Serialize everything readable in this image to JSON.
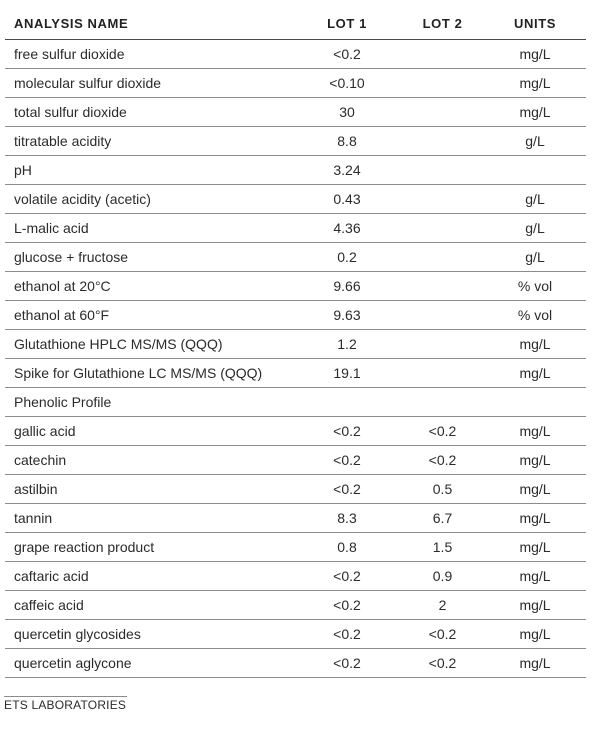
{
  "table": {
    "headers": {
      "name": "ANALYSIS NAME",
      "lot1": "LOT 1",
      "lot2": "LOT 2",
      "units": "UNITS"
    },
    "rows": [
      {
        "name": "free sulfur dioxide",
        "lot1": "<0.2",
        "lot2": "",
        "units": "mg/L"
      },
      {
        "name": "molecular sulfur dioxide",
        "lot1": "<0.10",
        "lot2": "",
        "units": "mg/L"
      },
      {
        "name": "total sulfur dioxide",
        "lot1": "30",
        "lot2": "",
        "units": "mg/L"
      },
      {
        "name": "titratable acidity",
        "lot1": "8.8",
        "lot2": "",
        "units": "g/L"
      },
      {
        "name": "pH",
        "lot1": "3.24",
        "lot2": "",
        "units": ""
      },
      {
        "name": "volatile acidity (acetic)",
        "lot1": "0.43",
        "lot2": "",
        "units": "g/L"
      },
      {
        "name": "L-malic acid",
        "lot1": "4.36",
        "lot2": "",
        "units": "g/L"
      },
      {
        "name": "glucose + fructose",
        "lot1": "0.2",
        "lot2": "",
        "units": "g/L"
      },
      {
        "name": "ethanol at 20°C",
        "lot1": "9.66",
        "lot2": "",
        "units": "% vol"
      },
      {
        "name": "ethanol at 60°F",
        "lot1": "9.63",
        "lot2": "",
        "units": "% vol"
      },
      {
        "name": "Glutathione HPLC MS/MS (QQQ)",
        "lot1": "1.2",
        "lot2": "",
        "units": "mg/L"
      },
      {
        "name": "Spike for Glutathione LC MS/MS (QQQ)",
        "lot1": "19.1",
        "lot2": "",
        "units": "mg/L"
      },
      {
        "name": "Phenolic Profile",
        "lot1": "",
        "lot2": "",
        "units": ""
      },
      {
        "name": "gallic acid",
        "lot1": "<0.2",
        "lot2": "<0.2",
        "units": "mg/L"
      },
      {
        "name": "catechin",
        "lot1": "<0.2",
        "lot2": "<0.2",
        "units": "mg/L"
      },
      {
        "name": "astilbin",
        "lot1": "<0.2",
        "lot2": "0.5",
        "units": "mg/L"
      },
      {
        "name": "tannin",
        "lot1": "8.3",
        "lot2": "6.7",
        "units": "mg/L"
      },
      {
        "name": "grape reaction product",
        "lot1": "0.8",
        "lot2": "1.5",
        "units": "mg/L"
      },
      {
        "name": "caftaric acid",
        "lot1": "<0.2",
        "lot2": "0.9",
        "units": "mg/L"
      },
      {
        "name": "caffeic acid",
        "lot1": "<0.2",
        "lot2": "2",
        "units": "mg/L"
      },
      {
        "name": "quercetin glycosides",
        "lot1": "<0.2",
        "lot2": "<0.2",
        "units": "mg/L"
      },
      {
        "name": "quercetin aglycone",
        "lot1": "<0.2",
        "lot2": "<0.2",
        "units": "mg/L"
      }
    ]
  },
  "footer": {
    "lab_name": "ETS LABORATORIES"
  }
}
